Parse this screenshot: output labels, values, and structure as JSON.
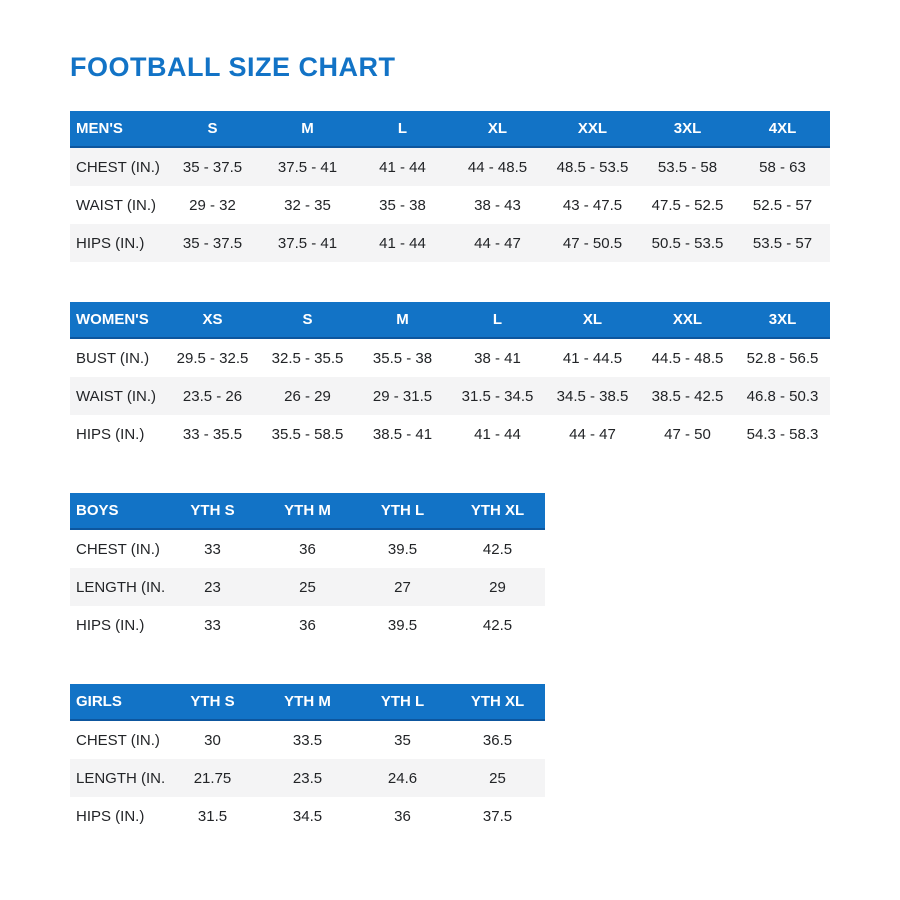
{
  "page": {
    "title": "FOOTBALL SIZE CHART"
  },
  "colors": {
    "accent_blue": "#1273C6",
    "header_border_blue": "#0d569e",
    "stripe_gray": "#F4F4F5",
    "text_dark": "#222427"
  },
  "tables": [
    {
      "name": "MEN'S",
      "columns": [
        "S",
        "M",
        "L",
        "XL",
        "XXL",
        "3XL",
        "4XL"
      ],
      "rows": [
        {
          "label": "CHEST (IN.)",
          "shaded": true,
          "values": [
            "35 - 37.5",
            "37.5 - 41",
            "41 - 44",
            "44 - 48.5",
            "48.5 - 53.5",
            "53.5 - 58",
            "58 - 63"
          ]
        },
        {
          "label": "WAIST (IN.)",
          "shaded": false,
          "values": [
            "29 - 32",
            "32 - 35",
            "35 - 38",
            "38 - 43",
            "43 - 47.5",
            "47.5 - 52.5",
            "52.5 - 57"
          ]
        },
        {
          "label": "HIPS (IN.)",
          "shaded": true,
          "values": [
            "35 - 37.5",
            "37.5 - 41",
            "41 - 44",
            "44 - 47",
            "47 - 50.5",
            "50.5 - 53.5",
            "53.5 - 57"
          ]
        }
      ]
    },
    {
      "name": "WOMEN'S",
      "columns": [
        "XS",
        "S",
        "M",
        "L",
        "XL",
        "XXL",
        "3XL"
      ],
      "rows": [
        {
          "label": "BUST (IN.)",
          "shaded": false,
          "values": [
            "29.5 - 32.5",
            "32.5 - 35.5",
            "35.5 - 38",
            "38 - 41",
            "41 - 44.5",
            "44.5 - 48.5",
            "52.8 - 56.5"
          ]
        },
        {
          "label": "WAIST (IN.)",
          "shaded": true,
          "values": [
            "23.5 - 26",
            "26 - 29",
            "29 - 31.5",
            "31.5 - 34.5",
            "34.5 - 38.5",
            "38.5 - 42.5",
            "46.8 - 50.3"
          ]
        },
        {
          "label": "HIPS (IN.)",
          "shaded": false,
          "values": [
            "33 - 35.5",
            "35.5 - 58.5",
            "38.5 - 41",
            "41 - 44",
            "44 - 47",
            "47 - 50",
            "54.3 - 58.3"
          ]
        }
      ]
    },
    {
      "name": "BOYS",
      "columns": [
        "YTH S",
        "YTH M",
        "YTH L",
        "YTH XL"
      ],
      "rows": [
        {
          "label": "CHEST (IN.)",
          "shaded": false,
          "values": [
            "33",
            "36",
            "39.5",
            "42.5"
          ]
        },
        {
          "label": "LENGTH (IN.)",
          "shaded": true,
          "values": [
            "23",
            "25",
            "27",
            "29"
          ]
        },
        {
          "label": "HIPS (IN.)",
          "shaded": false,
          "values": [
            "33",
            "36",
            "39.5",
            "42.5"
          ]
        }
      ]
    },
    {
      "name": "GIRLS",
      "columns": [
        "YTH S",
        "YTH M",
        "YTH L",
        "YTH XL"
      ],
      "rows": [
        {
          "label": "CHEST (IN.)",
          "shaded": false,
          "values": [
            "30",
            "33.5",
            "35",
            "36.5"
          ]
        },
        {
          "label": "LENGTH (IN.)",
          "shaded": true,
          "values": [
            "21.75",
            "23.5",
            "24.6",
            "25"
          ]
        },
        {
          "label": "HIPS (IN.)",
          "shaded": false,
          "values": [
            "31.5",
            "34.5",
            "36",
            "37.5"
          ]
        }
      ]
    }
  ]
}
